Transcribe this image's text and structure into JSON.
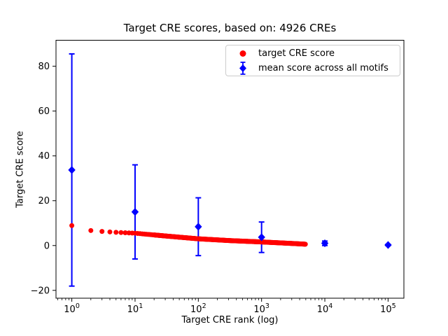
{
  "figure": {
    "title": "Target CRE scores, based on: 4926 CREs",
    "xlabel": "Target CRE rank (log)",
    "ylabel": "Target CRE score",
    "background": "#ffffff"
  },
  "legend": {
    "position": "upper-right",
    "items": [
      {
        "label": "target CRE score",
        "marker": "red-circle",
        "color": "#ff0000"
      },
      {
        "label": "mean score across all motifs",
        "marker": "blue-diamond-errorbar",
        "color": "#0000ff"
      }
    ]
  },
  "chart_data": {
    "type": "scatter",
    "title": "Target CRE scores, based on: 4926 CREs",
    "xlabel": "Target CRE rank (log)",
    "ylabel": "Target CRE score",
    "x_scale": "log",
    "xlim_log10": [
      -0.25,
      5.25
    ],
    "ylim": [
      -23.5,
      91.6
    ],
    "x_major_ticks": [
      1,
      10,
      100,
      1000,
      10000,
      100000
    ],
    "x_tick_exponents": [
      0,
      1,
      2,
      3,
      4,
      5
    ],
    "y_ticks": [
      -20,
      0,
      20,
      40,
      60,
      80
    ],
    "grid": false,
    "legend_position": "upper-right",
    "series": [
      {
        "name": "target CRE score",
        "type": "scatter",
        "marker": "circle",
        "color": "#ff0000",
        "n_points": 4926,
        "rank_samples": [
          1,
          2,
          3,
          5,
          10,
          32,
          100,
          316,
          1000,
          3162,
          4926
        ],
        "score_samples": [
          8.9,
          6.7,
          6.3,
          5.9,
          5.5,
          4.2,
          3.0,
          2.2,
          1.6,
          0.9,
          0.6
        ]
      },
      {
        "name": "mean score across all motifs",
        "type": "errorbar",
        "marker": "diamond",
        "color": "#0000ff",
        "rank": [
          1,
          10,
          100,
          1000,
          10000,
          100000
        ],
        "mean": [
          33.7,
          15.0,
          8.4,
          3.7,
          1.0,
          0.25
        ],
        "err": [
          51.8,
          21.0,
          12.9,
          6.8,
          1.0,
          0.3
        ]
      }
    ]
  },
  "colors": {
    "red": "#ff0000",
    "blue": "#0000ff",
    "text": "#000000",
    "axis": "#000000",
    "legend_border": "#cccccc",
    "background": "#ffffff"
  }
}
